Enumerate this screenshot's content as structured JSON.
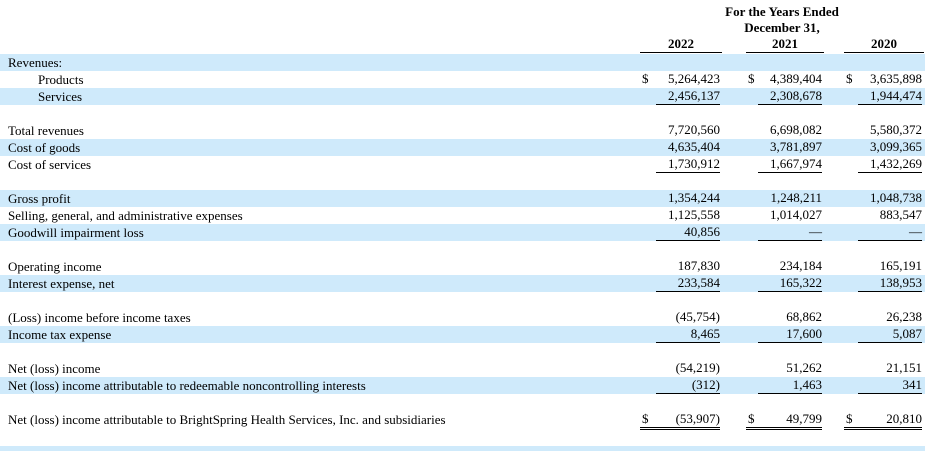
{
  "header": {
    "title_line1": "For the Years Ended",
    "title_line2": "December 31,",
    "years": [
      "2022",
      "2021",
      "2020"
    ]
  },
  "rows": [
    {
      "label": "Revenues:"
    },
    {
      "label": "Products",
      "currency": [
        "$",
        "$",
        "$"
      ],
      "values": [
        "5,264,423",
        "4,389,404",
        "3,635,898"
      ]
    },
    {
      "label": "Services",
      "values": [
        "2,456,137",
        "2,308,678",
        "1,944,474"
      ]
    },
    {
      "label": "Total revenues",
      "values": [
        "7,720,560",
        "6,698,082",
        "5,580,372"
      ]
    },
    {
      "label": "Cost of goods",
      "values": [
        "4,635,404",
        "3,781,897",
        "3,099,365"
      ]
    },
    {
      "label": "Cost of services",
      "values": [
        "1,730,912",
        "1,667,974",
        "1,432,269"
      ]
    },
    {
      "label": "Gross profit",
      "values": [
        "1,354,244",
        "1,248,211",
        "1,048,738"
      ]
    },
    {
      "label": "Selling, general, and administrative expenses",
      "values": [
        "1,125,558",
        "1,014,027",
        "883,547"
      ]
    },
    {
      "label": "Goodwill impairment loss",
      "values": [
        "40,856",
        "—",
        "—"
      ]
    },
    {
      "label": "Operating income",
      "values": [
        "187,830",
        "234,184",
        "165,191"
      ]
    },
    {
      "label": "Interest expense, net",
      "values": [
        "233,584",
        "165,322",
        "138,953"
      ]
    },
    {
      "label": "(Loss) income before income taxes",
      "values": [
        "(45,754)",
        "68,862",
        "26,238"
      ]
    },
    {
      "label": "Income tax expense",
      "values": [
        "8,465",
        "17,600",
        "5,087"
      ]
    },
    {
      "label": "Net (loss) income",
      "values": [
        "(54,219)",
        "51,262",
        "21,151"
      ]
    },
    {
      "label": "Net (loss) income attributable to redeemable noncontrolling interests",
      "values": [
        "(312)",
        "1,463",
        "341"
      ]
    },
    {
      "label": "Net (loss) income attributable to BrightSpring Health Services, Inc. and subsidiaries",
      "currency": [
        "$",
        "$",
        "$"
      ],
      "values": [
        "(53,907)",
        "49,799",
        "20,810"
      ]
    }
  ]
}
